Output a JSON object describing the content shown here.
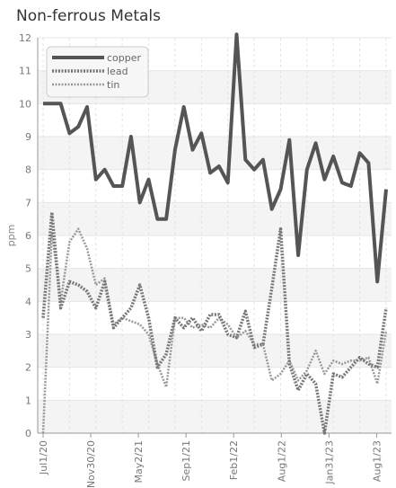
{
  "chart_data": {
    "type": "line",
    "title": "Non-ferrous Metals",
    "ylabel": "ppm",
    "xlabel": "",
    "ylim": [
      0,
      12
    ],
    "yticks": [
      0,
      1,
      2,
      3,
      4,
      5,
      6,
      7,
      8,
      9,
      10,
      11,
      12
    ],
    "legend_position": "top-left",
    "grid": true,
    "x_tick_labels": [
      "Jul1/20",
      "Nov30/20",
      "May2/21",
      "Sep1/21",
      "Feb1/22",
      "Aug1/22",
      "Jan31/23",
      "Aug1/23"
    ],
    "series": [
      {
        "name": "copper",
        "color": "#555555",
        "style": "solid",
        "values": [
          10,
          10,
          10,
          9.1,
          9.3,
          9.9,
          7.7,
          8.0,
          7.5,
          7.5,
          9.0,
          7.0,
          7.7,
          6.5,
          6.5,
          8.6,
          9.9,
          8.6,
          9.1,
          7.9,
          8.1,
          7.6,
          12.1,
          8.3,
          8.0,
          8.3,
          6.8,
          7.4,
          8.9,
          5.4,
          8.0,
          8.8,
          7.7,
          8.4,
          7.6,
          7.5,
          8.5,
          8.2,
          4.6,
          7.4
        ]
      },
      {
        "name": "lead",
        "color": "#777777",
        "style": "dashed",
        "values": [
          3.5,
          6.7,
          3.8,
          4.6,
          4.5,
          4.3,
          3.8,
          4.6,
          3.2,
          3.5,
          3.8,
          4.5,
          3.5,
          2.0,
          2.4,
          3.5,
          3.2,
          3.5,
          3.1,
          3.6,
          3.6,
          3.0,
          2.9,
          3.7,
          2.6,
          2.7,
          4.4,
          6.2,
          2.1,
          1.3,
          1.8,
          1.5,
          0.0,
          1.8,
          1.7,
          2.0,
          2.3,
          2.1,
          2.0,
          3.8
        ]
      },
      {
        "name": "tin",
        "color": "#999999",
        "style": "dashed",
        "values": [
          0,
          6.1,
          4.0,
          5.8,
          6.2,
          5.6,
          4.5,
          4.7,
          3.3,
          3.5,
          3.4,
          3.3,
          3.0,
          2.1,
          1.4,
          3.5,
          3.5,
          3.2,
          3.3,
          3.2,
          3.5,
          3.3,
          2.9,
          3.1,
          2.7,
          2.7,
          1.6,
          1.8,
          2.2,
          1.6,
          1.9,
          2.5,
          1.8,
          2.2,
          2.1,
          2.2,
          2.2,
          2.3,
          1.5,
          3.1
        ]
      }
    ]
  }
}
